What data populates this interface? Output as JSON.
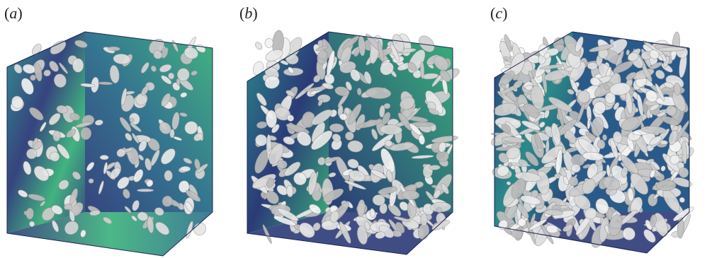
{
  "panels": [
    {
      "id": "a",
      "label": "(a)",
      "density": "sparse"
    },
    {
      "id": "b",
      "label": "(b)",
      "density": "medium"
    },
    {
      "id": "c",
      "label": "(c)",
      "density": "dense"
    }
  ],
  "colors": {
    "background": "#ffffff",
    "wall_dark": "#2b3a78",
    "wall_teal": "#2a8a8a",
    "wall_green": "#38b07a",
    "isosurface": "#e6e6e6",
    "isosurface_shadow": "#9a9a9a"
  }
}
